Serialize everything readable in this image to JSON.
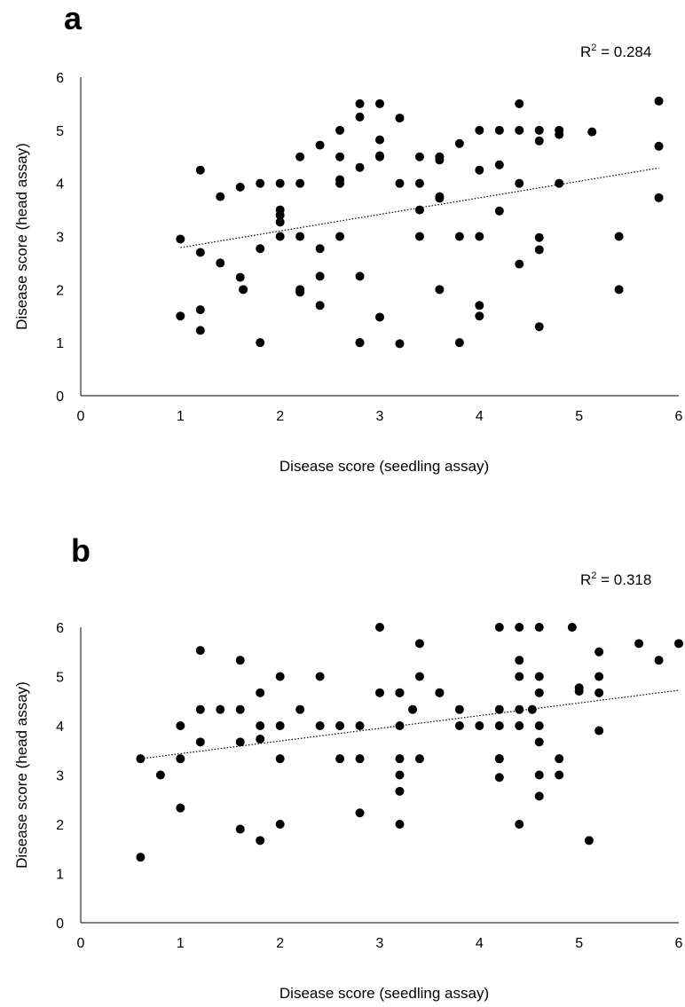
{
  "chart_data": [
    {
      "type": "scatter",
      "panel_label": "a",
      "annotation": {
        "r2_prefix": "R",
        "r2_sup": "2",
        "r2_value": " = 0.284"
      },
      "xlabel": "Disease score (seedling assay)",
      "ylabel": "Disease score (head assay)",
      "xlim": [
        0,
        6
      ],
      "ylim": [
        0,
        6
      ],
      "xticks": [
        "0",
        "1",
        "2",
        "3",
        "4",
        "5",
        "6"
      ],
      "yticks": [
        "0",
        "1",
        "2",
        "3",
        "4",
        "5",
        "6"
      ],
      "grid": false,
      "trendline": {
        "style": "dotted",
        "x": [
          1,
          5.8
        ],
        "y": [
          2.79,
          4.29
        ]
      },
      "points": [
        [
          1.0,
          2.95
        ],
        [
          1.0,
          1.5
        ],
        [
          1.2,
          4.25
        ],
        [
          1.2,
          2.7
        ],
        [
          1.2,
          1.62
        ],
        [
          1.2,
          1.23
        ],
        [
          1.4,
          3.75
        ],
        [
          1.4,
          2.5
        ],
        [
          1.6,
          3.93
        ],
        [
          1.6,
          2.23
        ],
        [
          1.63,
          2.0
        ],
        [
          1.8,
          4.0
        ],
        [
          1.8,
          2.77
        ],
        [
          1.8,
          1.0
        ],
        [
          2.0,
          4.0
        ],
        [
          2.0,
          3.5
        ],
        [
          2.0,
          3.4
        ],
        [
          2.0,
          3.27
        ],
        [
          2.0,
          3.0
        ],
        [
          2.2,
          4.5
        ],
        [
          2.2,
          4.0
        ],
        [
          2.2,
          3.0
        ],
        [
          2.2,
          2.0
        ],
        [
          2.2,
          1.95
        ],
        [
          2.4,
          4.72
        ],
        [
          2.4,
          2.77
        ],
        [
          2.4,
          2.25
        ],
        [
          2.4,
          1.7
        ],
        [
          2.6,
          5.0
        ],
        [
          2.6,
          4.5
        ],
        [
          2.6,
          4.07
        ],
        [
          2.6,
          4.0
        ],
        [
          2.6,
          3.0
        ],
        [
          2.8,
          5.5
        ],
        [
          2.8,
          5.25
        ],
        [
          2.8,
          4.3
        ],
        [
          2.8,
          2.25
        ],
        [
          2.8,
          1.0
        ],
        [
          2.8,
          1.0
        ],
        [
          3.0,
          5.5
        ],
        [
          3.0,
          4.82
        ],
        [
          3.0,
          4.5
        ],
        [
          3.0,
          4.52
        ],
        [
          3.0,
          1.48
        ],
        [
          3.2,
          5.23
        ],
        [
          3.2,
          4.0
        ],
        [
          3.2,
          0.98
        ],
        [
          3.4,
          4.5
        ],
        [
          3.4,
          4.0
        ],
        [
          3.4,
          3.5
        ],
        [
          3.4,
          3.0
        ],
        [
          3.6,
          4.5
        ],
        [
          3.6,
          4.44
        ],
        [
          3.6,
          3.75
        ],
        [
          3.6,
          3.72
        ],
        [
          3.6,
          2.0
        ],
        [
          3.8,
          4.75
        ],
        [
          3.8,
          3.0
        ],
        [
          3.8,
          1.0
        ],
        [
          4.0,
          5.0
        ],
        [
          4.0,
          4.25
        ],
        [
          4.0,
          3.0
        ],
        [
          4.0,
          1.7
        ],
        [
          4.0,
          1.5
        ],
        [
          4.2,
          5.0
        ],
        [
          4.2,
          4.35
        ],
        [
          4.2,
          3.48
        ],
        [
          4.4,
          5.5
        ],
        [
          4.4,
          5.0
        ],
        [
          4.4,
          4.0
        ],
        [
          4.4,
          2.48
        ],
        [
          4.6,
          5.0
        ],
        [
          4.6,
          4.8
        ],
        [
          4.6,
          2.98
        ],
        [
          4.6,
          2.75
        ],
        [
          4.6,
          1.3
        ],
        [
          4.8,
          5.0
        ],
        [
          4.8,
          4.92
        ],
        [
          4.8,
          4.0
        ],
        [
          5.13,
          4.97
        ],
        [
          5.4,
          3.0
        ],
        [
          5.4,
          2.0
        ],
        [
          5.8,
          5.55
        ],
        [
          5.8,
          4.7
        ],
        [
          5.8,
          3.73
        ]
      ]
    },
    {
      "type": "scatter",
      "panel_label": "b",
      "annotation": {
        "r2_prefix": "R",
        "r2_sup": "2",
        "r2_value": " = 0.318"
      },
      "xlabel": "Disease score (seedling assay)",
      "ylabel": "Disease score (head assay)",
      "xlim": [
        0,
        6
      ],
      "ylim": [
        0,
        6
      ],
      "xticks": [
        "0",
        "1",
        "2",
        "3",
        "4",
        "5",
        "6"
      ],
      "yticks": [
        "0",
        "1",
        "2",
        "3",
        "4",
        "5",
        "6"
      ],
      "grid": false,
      "trendline": {
        "style": "dotted",
        "x": [
          0.6,
          6.0
        ],
        "y": [
          3.33,
          4.72
        ]
      },
      "points": [
        [
          0.6,
          3.33
        ],
        [
          0.6,
          1.33
        ],
        [
          0.8,
          3.0
        ],
        [
          1.0,
          4.0
        ],
        [
          1.0,
          3.33
        ],
        [
          1.0,
          2.33
        ],
        [
          1.2,
          5.53
        ],
        [
          1.2,
          4.33
        ],
        [
          1.2,
          3.67
        ],
        [
          1.4,
          4.33
        ],
        [
          1.6,
          5.33
        ],
        [
          1.6,
          4.33
        ],
        [
          1.6,
          3.67
        ],
        [
          1.6,
          1.9
        ],
        [
          1.8,
          4.67
        ],
        [
          1.8,
          4.0
        ],
        [
          1.8,
          3.73
        ],
        [
          1.8,
          1.67
        ],
        [
          2.0,
          5.0
        ],
        [
          2.0,
          4.0
        ],
        [
          2.0,
          3.33
        ],
        [
          2.0,
          2.0
        ],
        [
          2.2,
          4.33
        ],
        [
          2.4,
          5.0
        ],
        [
          2.4,
          4.0
        ],
        [
          2.6,
          4.0
        ],
        [
          2.6,
          3.33
        ],
        [
          2.8,
          4.0
        ],
        [
          2.8,
          3.33
        ],
        [
          2.8,
          2.23
        ],
        [
          3.0,
          6.0
        ],
        [
          3.0,
          4.67
        ],
        [
          3.2,
          4.67
        ],
        [
          3.2,
          4.67
        ],
        [
          3.2,
          4.0
        ],
        [
          3.2,
          3.33
        ],
        [
          3.2,
          3.0
        ],
        [
          3.2,
          2.67
        ],
        [
          3.2,
          2.0
        ],
        [
          3.33,
          4.33
        ],
        [
          3.4,
          5.67
        ],
        [
          3.4,
          5.0
        ],
        [
          3.4,
          3.33
        ],
        [
          3.6,
          4.67
        ],
        [
          3.6,
          4.67
        ],
        [
          3.8,
          4.33
        ],
        [
          3.8,
          4.0
        ],
        [
          4.0,
          4.0
        ],
        [
          4.2,
          6.0
        ],
        [
          4.2,
          4.33
        ],
        [
          4.2,
          4.0
        ],
        [
          4.2,
          3.33
        ],
        [
          4.2,
          3.33
        ],
        [
          4.2,
          2.95
        ],
        [
          4.4,
          6.0
        ],
        [
          4.4,
          5.33
        ],
        [
          4.4,
          5.0
        ],
        [
          4.4,
          4.33
        ],
        [
          4.4,
          4.0
        ],
        [
          4.4,
          2.0
        ],
        [
          4.53,
          4.33
        ],
        [
          4.6,
          6.0
        ],
        [
          4.6,
          5.0
        ],
        [
          4.6,
          4.67
        ],
        [
          4.6,
          4.0
        ],
        [
          4.6,
          3.67
        ],
        [
          4.6,
          3.0
        ],
        [
          4.6,
          2.57
        ],
        [
          4.8,
          3.33
        ],
        [
          4.8,
          3.0
        ],
        [
          4.93,
          6.0
        ],
        [
          5.0,
          4.77
        ],
        [
          5.0,
          4.7
        ],
        [
          5.1,
          1.67
        ],
        [
          5.2,
          5.5
        ],
        [
          5.2,
          5.0
        ],
        [
          5.2,
          4.67
        ],
        [
          5.2,
          3.9
        ],
        [
          5.6,
          5.67
        ],
        [
          5.8,
          5.33
        ],
        [
          6.0,
          5.67
        ]
      ]
    }
  ]
}
